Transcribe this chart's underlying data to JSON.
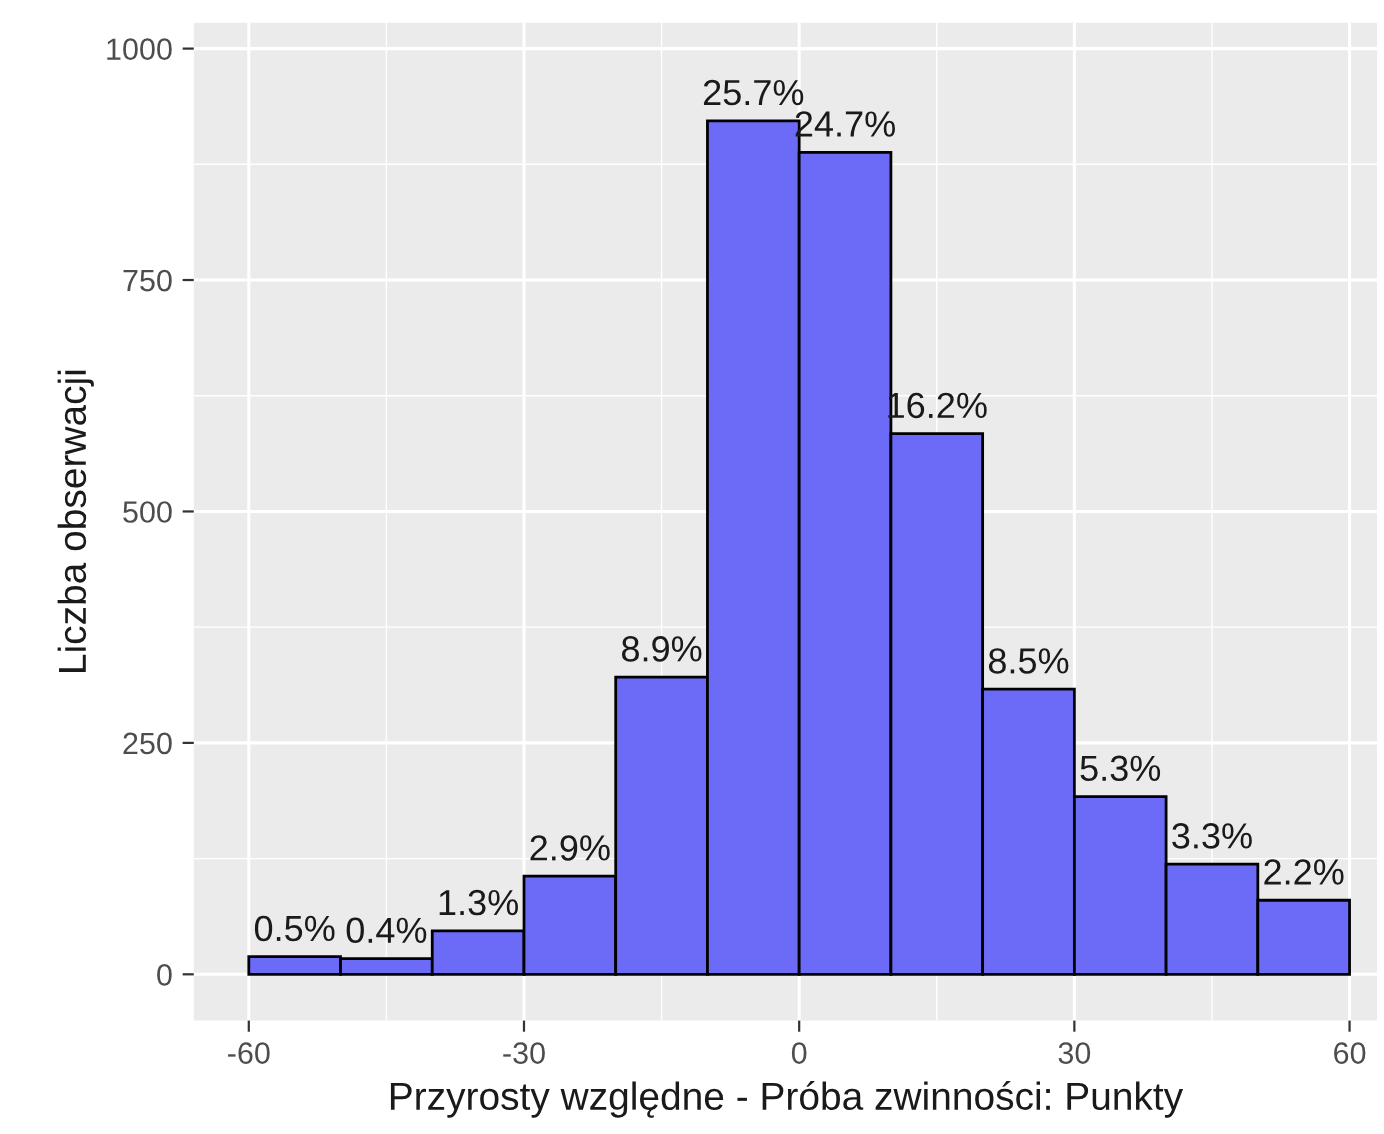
{
  "chart_data": {
    "type": "histogram",
    "xlabel": "Przyrosty względne - Próba zwinności: Punkty",
    "ylabel": "Liczba obserwacji",
    "bins": [
      -60,
      -50,
      -40,
      -30,
      -20,
      -10,
      0,
      10,
      20,
      30,
      40,
      50,
      60
    ],
    "values": [
      19,
      17,
      47,
      106,
      321,
      922,
      888,
      584,
      308,
      192,
      119,
      80
    ],
    "annotations": [
      {
        "text": "0.5%",
        "x": -55,
        "y": 19
      },
      {
        "text": "0.4%",
        "x": -45,
        "y": 17
      },
      {
        "text": "1.3%",
        "x": -35,
        "y": 47
      },
      {
        "text": "2.9%",
        "x": -25,
        "y": 106
      },
      {
        "text": "8.9%",
        "x": -15,
        "y": 321
      },
      {
        "text": "25.7%",
        "x": -5,
        "y": 922
      },
      {
        "text": "24.7%",
        "x": 5,
        "y": 888
      },
      {
        "text": "16.2%",
        "x": 15,
        "y": 584
      },
      {
        "text": "8.5%",
        "x": 25,
        "y": 308
      },
      {
        "text": "5.3%",
        "x": 35,
        "y": 192
      },
      {
        "text": "3.3%",
        "x": 45,
        "y": 119
      },
      {
        "text": "2.2%",
        "x": 55,
        "y": 80
      }
    ],
    "color": "#6b6bf7",
    "xlim": [
      -66,
      63
    ],
    "ylim": [
      -50,
      1028
    ],
    "xticks": [
      -60,
      -30,
      0,
      30,
      60
    ],
    "yticks": [
      0,
      250,
      500,
      750,
      1000
    ],
    "grid": true
  }
}
